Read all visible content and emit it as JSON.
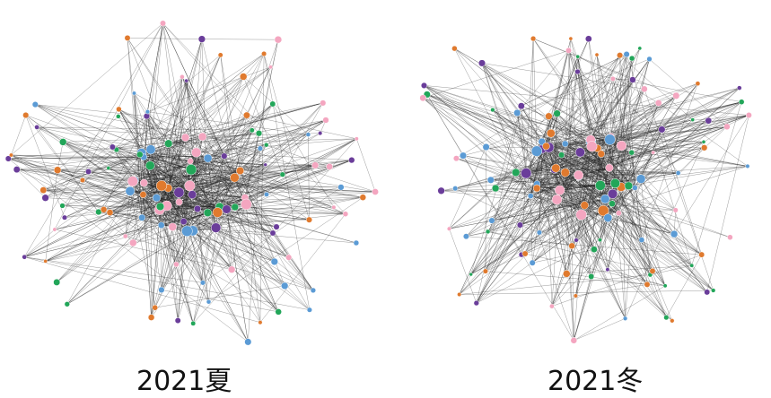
{
  "panels": [
    {
      "label": "2021夏"
    },
    {
      "label": "2021冬"
    }
  ],
  "node_colors": {
    "orange": "#e07a2e",
    "green": "#22a659",
    "blue": "#5b9bd5",
    "purple": "#6a3d9a",
    "pink": "#f4a6c0"
  },
  "edge_color": "#222222"
}
